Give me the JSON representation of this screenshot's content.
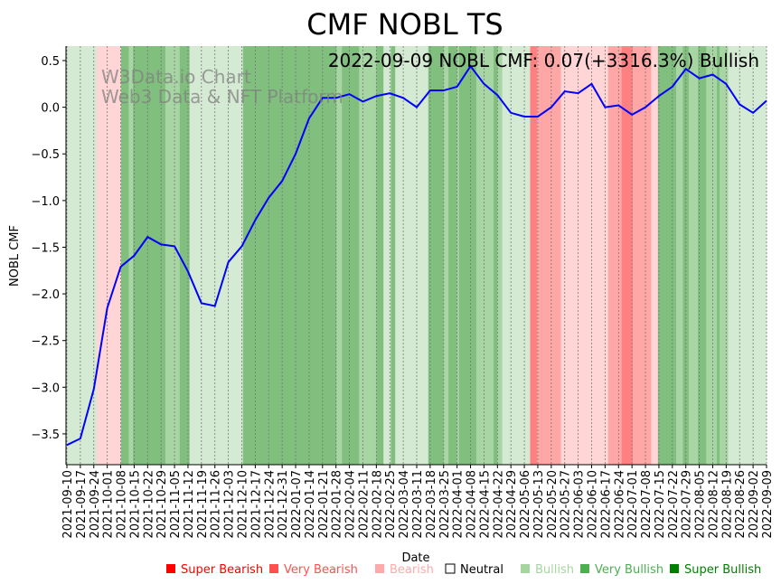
{
  "chart_data": {
    "type": "line",
    "title": "CMF NOBL TS",
    "xlabel": "Date",
    "ylabel": "NOBL CMF",
    "annotation": "2022-09-09 NOBL CMF: 0.07(+3316.3%) Bullish",
    "watermark": [
      "W3Data.io Chart",
      "Web3 Data & NFT Platform"
    ],
    "ylim": [
      -3.83,
      0.655
    ],
    "yticks": [
      0.5,
      0.0,
      -0.5,
      -1.0,
      -1.5,
      -2.0,
      -2.5,
      -3.0,
      -3.5
    ],
    "ytick_labels": [
      "0.5",
      "0.0",
      "−0.5",
      "−1.0",
      "−1.5",
      "−2.0",
      "−2.5",
      "−3.0",
      "−3.5"
    ],
    "x_days_range": [
      0,
      364
    ],
    "xtick_labels": [
      "2021-09-10",
      "2021-09-17",
      "2021-09-24",
      "2021-10-01",
      "2021-10-08",
      "2021-10-15",
      "2021-10-22",
      "2021-10-29",
      "2021-11-05",
      "2021-11-12",
      "2021-11-19",
      "2021-11-26",
      "2021-12-03",
      "2021-12-10",
      "2021-12-17",
      "2021-12-24",
      "2021-12-31",
      "2022-01-07",
      "2022-01-14",
      "2022-01-21",
      "2022-01-28",
      "2022-02-04",
      "2022-02-11",
      "2022-02-18",
      "2022-02-25",
      "2022-03-04",
      "2022-03-11",
      "2022-03-18",
      "2022-03-25",
      "2022-04-01",
      "2022-04-08",
      "2022-04-15",
      "2022-04-22",
      "2022-04-29",
      "2022-05-06",
      "2022-05-13",
      "2022-05-20",
      "2022-05-27",
      "2022-06-03",
      "2022-06-10",
      "2022-06-17",
      "2022-06-24",
      "2022-07-01",
      "2022-07-08",
      "2022-07-15",
      "2022-07-22",
      "2022-07-29",
      "2022-08-05",
      "2022-08-12",
      "2022-08-19",
      "2022-08-26",
      "2022-09-02",
      "2022-09-09"
    ],
    "series": [
      {
        "name": "NOBL CMF",
        "color": "#0000ff",
        "values": [
          -3.62,
          -3.55,
          -3.02,
          -2.15,
          -1.71,
          -1.59,
          -1.39,
          -1.47,
          -1.49,
          -1.76,
          -2.1,
          -2.13,
          -1.66,
          -1.49,
          -1.21,
          -0.97,
          -0.79,
          -0.5,
          -0.12,
          0.1,
          0.1,
          0.14,
          0.06,
          0.12,
          0.15,
          0.1,
          0.0,
          0.18,
          0.18,
          0.22,
          0.44,
          0.25,
          0.13,
          -0.06,
          -0.1,
          -0.1,
          0.0,
          0.17,
          0.15,
          0.25,
          0.0,
          0.02,
          -0.08,
          0.0,
          0.12,
          0.22,
          0.41,
          0.31,
          0.35,
          0.25,
          0.03,
          -0.06,
          0.07
        ]
      }
    ],
    "bands": [
      {
        "from": 0,
        "to": 15.5,
        "level": "bullish"
      },
      {
        "from": 15.5,
        "to": 28.2,
        "level": "bearish"
      },
      {
        "from": 28.2,
        "to": 32.2,
        "level": "super_bullish"
      },
      {
        "from": 32.2,
        "to": 34.4,
        "level": "very_bullish"
      },
      {
        "from": 34.4,
        "to": 51.2,
        "level": "super_bullish"
      },
      {
        "from": 51.2,
        "to": 58.7,
        "level": "very_bullish"
      },
      {
        "from": 58.7,
        "to": 63.8,
        "level": "super_bullish"
      },
      {
        "from": 63.8,
        "to": 91.6,
        "level": "bullish"
      },
      {
        "from": 91.6,
        "to": 140.3,
        "level": "super_bullish"
      },
      {
        "from": 140.3,
        "to": 143.1,
        "level": "very_bullish"
      },
      {
        "from": 143.1,
        "to": 152,
        "level": "super_bullish"
      },
      {
        "from": 152,
        "to": 161,
        "level": "very_bullish"
      },
      {
        "from": 161,
        "to": 164.7,
        "level": "super_bullish"
      },
      {
        "from": 164.7,
        "to": 168.5,
        "level": "bullish"
      },
      {
        "from": 168.5,
        "to": 170.8,
        "level": "super_bullish"
      },
      {
        "from": 170.8,
        "to": 188,
        "level": "bullish"
      },
      {
        "from": 188,
        "to": 196,
        "level": "super_bullish"
      },
      {
        "from": 196,
        "to": 198.5,
        "level": "very_bullish"
      },
      {
        "from": 198.5,
        "to": 203,
        "level": "super_bullish"
      },
      {
        "from": 203,
        "to": 204,
        "level": "very_bullish"
      },
      {
        "from": 204,
        "to": 213,
        "level": "super_bullish"
      },
      {
        "from": 213,
        "to": 222,
        "level": "very_bullish"
      },
      {
        "from": 222,
        "to": 224,
        "level": "super_bullish"
      },
      {
        "from": 224,
        "to": 226.5,
        "level": "very_bullish"
      },
      {
        "from": 226.5,
        "to": 241,
        "level": "bullish"
      },
      {
        "from": 241,
        "to": 244.6,
        "level": "super_bearish"
      },
      {
        "from": 244.6,
        "to": 257,
        "level": "very_bearish"
      },
      {
        "from": 257,
        "to": 281.6,
        "level": "bearish"
      },
      {
        "from": 281.6,
        "to": 288.6,
        "level": "very_bearish"
      },
      {
        "from": 288.6,
        "to": 294.3,
        "level": "super_bearish"
      },
      {
        "from": 294.3,
        "to": 304,
        "level": "very_bearish"
      },
      {
        "from": 304,
        "to": 307.5,
        "level": "bearish"
      },
      {
        "from": 307.5,
        "to": 317,
        "level": "super_bullish"
      },
      {
        "from": 317,
        "to": 320.5,
        "level": "very_bullish"
      },
      {
        "from": 320.5,
        "to": 323.5,
        "level": "super_bullish"
      },
      {
        "from": 323.5,
        "to": 328.3,
        "level": "very_bullish"
      },
      {
        "from": 328.3,
        "to": 332.6,
        "level": "super_bullish"
      },
      {
        "from": 332.6,
        "to": 338.2,
        "level": "very_bullish"
      },
      {
        "from": 338.2,
        "to": 339.6,
        "level": "super_bullish"
      },
      {
        "from": 339.6,
        "to": 344,
        "level": "very_bullish"
      },
      {
        "from": 344,
        "to": 364,
        "level": "bullish"
      }
    ],
    "band_colors": {
      "super_bearish": "#ff8080",
      "very_bearish": "#ffa6a6",
      "bearish": "#ffd5d5",
      "bullish": "#d5ead3",
      "very_bullish": "#a8d5a4",
      "super_bullish": "#80bf7e"
    },
    "legend": [
      {
        "label": "Super Bearish",
        "color": "#ff0000"
      },
      {
        "label": "Very Bearish",
        "color": "#ff5050"
      },
      {
        "label": "Bearish",
        "color": "#ffaaaa"
      },
      {
        "label": "Neutral",
        "color": "#000000"
      },
      {
        "label": "Bullish",
        "color": "#a5d6a0"
      },
      {
        "label": "Very Bullish",
        "color": "#4caf50"
      },
      {
        "label": "Super Bullish",
        "color": "#008000"
      }
    ],
    "legend_placement": "bottom"
  }
}
